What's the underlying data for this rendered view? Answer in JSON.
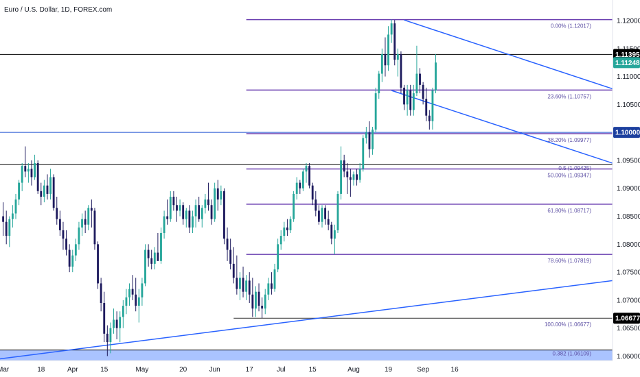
{
  "chart_data": {
    "type": "candlestick",
    "title": "Euro / U.S. Dollar, 1D, FOREX.com",
    "ylim": [
      1.0592,
      1.1227
    ],
    "xlim": [
      0,
      194
    ],
    "y_ticks": [
      "1.06000",
      "1.06500",
      "1.07000",
      "1.07500",
      "1.08000",
      "1.08500",
      "1.09000",
      "1.09500",
      "1.10000",
      "1.10500",
      "1.11000",
      "1.11500",
      "1.12000"
    ],
    "x_ticks": [
      {
        "label": "Mar",
        "x": 1
      },
      {
        "label": "18",
        "x": 13
      },
      {
        "label": "Apr",
        "x": 23
      },
      {
        "label": "15",
        "x": 33
      },
      {
        "label": "May",
        "x": 45
      },
      {
        "label": "20",
        "x": 58
      },
      {
        "label": "Jun",
        "x": 68
      },
      {
        "label": "17",
        "x": 79
      },
      {
        "label": "Jul",
        "x": 89
      },
      {
        "label": "15",
        "x": 99
      },
      {
        "label": "Aug",
        "x": 112
      },
      {
        "label": "19",
        "x": 123
      },
      {
        "label": "Sep",
        "x": 134
      },
      {
        "label": "16",
        "x": 144
      }
    ],
    "colors": {
      "up": "#26a69a",
      "down": "#1e1b5e",
      "fib": "#6a3fb0",
      "trend": "#2962ff",
      "support_zone": "#9bb8ff",
      "black_line": "#000000",
      "last_price": "#26a69a"
    },
    "horizontal_levels": [
      {
        "y": 1.11395,
        "color": "#000000",
        "tag": "1.11395",
        "tag_bg": "#000000"
      },
      {
        "y": 1.1,
        "color": "#1f4fd1",
        "tag": "1.10000",
        "tag_bg": "#1c3f9e"
      },
      {
        "y": 1.0943,
        "color": "#000000",
        "tag": null
      },
      {
        "y": 1.06109,
        "color": "#000000",
        "tag": null
      }
    ],
    "last_price": {
      "value": 1.11248,
      "tag": "1.11248"
    },
    "fib_low_tag": {
      "value": 1.06677,
      "tag": "1.06677"
    },
    "fib_levels": [
      {
        "label": "0.00% (1.12017)",
        "y": 1.12017
      },
      {
        "label": "23.60% (1.10757)",
        "y": 1.10757
      },
      {
        "label": "38.20% (1.09977)",
        "y": 1.09977
      },
      {
        "label": "50.00% (1.09347)",
        "y": 1.09347
      },
      {
        "label": "61.80% (1.08717)",
        "y": 1.08717
      },
      {
        "label": "78.60% (1.07819)",
        "y": 1.07819
      },
      {
        "label": "100.00% (1.06677)",
        "y": 1.06677
      }
    ],
    "fib_start_x": 78,
    "fib_100_start_x": 74,
    "extra_labels": [
      {
        "label": "0.5 (1.09425)",
        "y": 1.09425
      },
      {
        "label": "0.382 (1.06109)",
        "y": 1.06109
      }
    ],
    "support_zone": {
      "y_low": 1.0592,
      "y_high": 1.06109
    },
    "trendlines": [
      {
        "x1": 0,
        "y1": 1.0595,
        "x2": 194,
        "y2": 1.0735
      },
      {
        "x1": 128,
        "y1": 1.1201,
        "x2": 194,
        "y2": 1.1078
      },
      {
        "x1": 124,
        "y1": 1.1075,
        "x2": 194,
        "y2": 1.0945
      }
    ],
    "candles": [
      {
        "x": 1,
        "o": 1.085,
        "h": 1.0875,
        "l": 1.0815,
        "c": 1.084
      },
      {
        "x": 2,
        "o": 1.084,
        "h": 1.086,
        "l": 1.08,
        "c": 1.0815
      },
      {
        "x": 3,
        "o": 1.0815,
        "h": 1.085,
        "l": 1.0795,
        "c": 1.0845
      },
      {
        "x": 4,
        "o": 1.0845,
        "h": 1.087,
        "l": 1.083,
        "c": 1.0855
      },
      {
        "x": 5,
        "o": 1.0855,
        "h": 1.089,
        "l": 1.0845,
        "c": 1.088
      },
      {
        "x": 6,
        "o": 1.088,
        "h": 1.0915,
        "l": 1.087,
        "c": 1.091
      },
      {
        "x": 7,
        "o": 1.091,
        "h": 1.0945,
        "l": 1.0895,
        "c": 1.094
      },
      {
        "x": 8,
        "o": 1.094,
        "h": 1.0975,
        "l": 1.092,
        "c": 1.093
      },
      {
        "x": 9,
        "o": 1.093,
        "h": 1.0945,
        "l": 1.091,
        "c": 1.0935
      },
      {
        "x": 10,
        "o": 1.0935,
        "h": 1.095,
        "l": 1.0905,
        "c": 1.092
      },
      {
        "x": 11,
        "o": 1.092,
        "h": 1.096,
        "l": 1.0915,
        "c": 1.0945
      },
      {
        "x": 12,
        "o": 1.0945,
        "h": 1.095,
        "l": 1.089,
        "c": 1.0895
      },
      {
        "x": 13,
        "o": 1.0895,
        "h": 1.091,
        "l": 1.087,
        "c": 1.0885
      },
      {
        "x": 14,
        "o": 1.0885,
        "h": 1.0915,
        "l": 1.0875,
        "c": 1.0905
      },
      {
        "x": 15,
        "o": 1.0905,
        "h": 1.0925,
        "l": 1.088,
        "c": 1.089
      },
      {
        "x": 16,
        "o": 1.089,
        "h": 1.0935,
        "l": 1.088,
        "c": 1.092
      },
      {
        "x": 17,
        "o": 1.092,
        "h": 1.0925,
        "l": 1.086,
        "c": 1.0865
      },
      {
        "x": 18,
        "o": 1.0865,
        "h": 1.0885,
        "l": 1.0835,
        "c": 1.0845
      },
      {
        "x": 19,
        "o": 1.0845,
        "h": 1.086,
        "l": 1.0815,
        "c": 1.0825
      },
      {
        "x": 20,
        "o": 1.0825,
        "h": 1.084,
        "l": 1.079,
        "c": 1.081
      },
      {
        "x": 21,
        "o": 1.081,
        "h": 1.0825,
        "l": 1.078,
        "c": 1.079
      },
      {
        "x": 22,
        "o": 1.079,
        "h": 1.08,
        "l": 1.075,
        "c": 1.076
      },
      {
        "x": 23,
        "o": 1.076,
        "h": 1.079,
        "l": 1.075,
        "c": 1.078
      },
      {
        "x": 24,
        "o": 1.078,
        "h": 1.081,
        "l": 1.077,
        "c": 1.08
      },
      {
        "x": 25,
        "o": 1.08,
        "h": 1.084,
        "l": 1.079,
        "c": 1.083
      },
      {
        "x": 26,
        "o": 1.083,
        "h": 1.0855,
        "l": 1.0815,
        "c": 1.0845
      },
      {
        "x": 27,
        "o": 1.0845,
        "h": 1.086,
        "l": 1.082,
        "c": 1.0835
      },
      {
        "x": 28,
        "o": 1.0835,
        "h": 1.087,
        "l": 1.0825,
        "c": 1.0865
      },
      {
        "x": 29,
        "o": 1.0865,
        "h": 1.088,
        "l": 1.083,
        "c": 1.086
      },
      {
        "x": 30,
        "o": 1.086,
        "h": 1.0865,
        "l": 1.079,
        "c": 1.08
      },
      {
        "x": 31,
        "o": 1.08,
        "h": 1.0805,
        "l": 1.072,
        "c": 1.073
      },
      {
        "x": 32,
        "o": 1.073,
        "h": 1.074,
        "l": 1.068,
        "c": 1.0695
      },
      {
        "x": 33,
        "o": 1.0695,
        "h": 1.0715,
        "l": 1.0625,
        "c": 1.064
      },
      {
        "x": 34,
        "o": 1.064,
        "h": 1.0655,
        "l": 1.06,
        "c": 1.0625
      },
      {
        "x": 35,
        "o": 1.0625,
        "h": 1.066,
        "l": 1.0605,
        "c": 1.065
      },
      {
        "x": 36,
        "o": 1.065,
        "h": 1.0685,
        "l": 1.064,
        "c": 1.0665
      },
      {
        "x": 37,
        "o": 1.0665,
        "h": 1.068,
        "l": 1.063,
        "c": 1.065
      },
      {
        "x": 38,
        "o": 1.065,
        "h": 1.068,
        "l": 1.0625,
        "c": 1.067
      },
      {
        "x": 39,
        "o": 1.067,
        "h": 1.07,
        "l": 1.065,
        "c": 1.069
      },
      {
        "x": 40,
        "o": 1.069,
        "h": 1.072,
        "l": 1.0675,
        "c": 1.0705
      },
      {
        "x": 41,
        "o": 1.0705,
        "h": 1.073,
        "l": 1.069,
        "c": 1.072
      },
      {
        "x": 42,
        "o": 1.072,
        "h": 1.0745,
        "l": 1.07,
        "c": 1.071
      },
      {
        "x": 43,
        "o": 1.071,
        "h": 1.074,
        "l": 1.068,
        "c": 1.069
      },
      {
        "x": 44,
        "o": 1.069,
        "h": 1.072,
        "l": 1.066,
        "c": 1.0705
      },
      {
        "x": 45,
        "o": 1.0705,
        "h": 1.074,
        "l": 1.069,
        "c": 1.073
      },
      {
        "x": 46,
        "o": 1.073,
        "h": 1.08,
        "l": 1.0725,
        "c": 1.079
      },
      {
        "x": 47,
        "o": 1.079,
        "h": 1.08,
        "l": 1.076,
        "c": 1.0775
      },
      {
        "x": 48,
        "o": 1.0775,
        "h": 1.079,
        "l": 1.0755,
        "c": 1.0765
      },
      {
        "x": 49,
        "o": 1.0765,
        "h": 1.0795,
        "l": 1.0755,
        "c": 1.0785
      },
      {
        "x": 50,
        "o": 1.0785,
        "h": 1.082,
        "l": 1.077,
        "c": 1.077
      },
      {
        "x": 51,
        "o": 1.077,
        "h": 1.083,
        "l": 1.0765,
        "c": 1.082
      },
      {
        "x": 52,
        "o": 1.082,
        "h": 1.086,
        "l": 1.081,
        "c": 1.085
      },
      {
        "x": 53,
        "o": 1.085,
        "h": 1.088,
        "l": 1.0835,
        "c": 1.0845
      },
      {
        "x": 54,
        "o": 1.0845,
        "h": 1.0895,
        "l": 1.084,
        "c": 1.0885
      },
      {
        "x": 55,
        "o": 1.0885,
        "h": 1.0895,
        "l": 1.086,
        "c": 1.087
      },
      {
        "x": 56,
        "o": 1.087,
        "h": 1.0885,
        "l": 1.084,
        "c": 1.086
      },
      {
        "x": 57,
        "o": 1.086,
        "h": 1.088,
        "l": 1.085,
        "c": 1.087
      },
      {
        "x": 58,
        "o": 1.087,
        "h": 1.0875,
        "l": 1.0835,
        "c": 1.0845
      },
      {
        "x": 59,
        "o": 1.0845,
        "h": 1.0865,
        "l": 1.083,
        "c": 1.086
      },
      {
        "x": 60,
        "o": 1.086,
        "h": 1.087,
        "l": 1.082,
        "c": 1.083
      },
      {
        "x": 61,
        "o": 1.083,
        "h": 1.086,
        "l": 1.082,
        "c": 1.085
      },
      {
        "x": 62,
        "o": 1.085,
        "h": 1.088,
        "l": 1.083,
        "c": 1.087
      },
      {
        "x": 63,
        "o": 1.087,
        "h": 1.0885,
        "l": 1.084,
        "c": 1.0845
      },
      {
        "x": 64,
        "o": 1.0845,
        "h": 1.087,
        "l": 1.083,
        "c": 1.0865
      },
      {
        "x": 65,
        "o": 1.0865,
        "h": 1.089,
        "l": 1.0855,
        "c": 1.088
      },
      {
        "x": 66,
        "o": 1.088,
        "h": 1.091,
        "l": 1.086,
        "c": 1.087
      },
      {
        "x": 67,
        "o": 1.087,
        "h": 1.088,
        "l": 1.0835,
        "c": 1.0845
      },
      {
        "x": 68,
        "o": 1.0845,
        "h": 1.091,
        "l": 1.084,
        "c": 1.09
      },
      {
        "x": 69,
        "o": 1.09,
        "h": 1.0915,
        "l": 1.086,
        "c": 1.088
      },
      {
        "x": 70,
        "o": 1.088,
        "h": 1.0905,
        "l": 1.087,
        "c": 1.0895
      },
      {
        "x": 71,
        "o": 1.0895,
        "h": 1.09,
        "l": 1.08,
        "c": 1.081
      },
      {
        "x": 72,
        "o": 1.081,
        "h": 1.083,
        "l": 1.077,
        "c": 1.079
      },
      {
        "x": 73,
        "o": 1.079,
        "h": 1.081,
        "l": 1.0755,
        "c": 1.0765
      },
      {
        "x": 74,
        "o": 1.0765,
        "h": 1.0795,
        "l": 1.073,
        "c": 1.074
      },
      {
        "x": 75,
        "o": 1.074,
        "h": 1.078,
        "l": 1.071,
        "c": 1.072
      },
      {
        "x": 76,
        "o": 1.072,
        "h": 1.075,
        "l": 1.07,
        "c": 1.074
      },
      {
        "x": 77,
        "o": 1.074,
        "h": 1.076,
        "l": 1.0705,
        "c": 1.0715
      },
      {
        "x": 78,
        "o": 1.0715,
        "h": 1.0745,
        "l": 1.07,
        "c": 1.0735
      },
      {
        "x": 79,
        "o": 1.0735,
        "h": 1.075,
        "l": 1.0695,
        "c": 1.071
      },
      {
        "x": 80,
        "o": 1.071,
        "h": 1.074,
        "l": 1.067,
        "c": 1.0685
      },
      {
        "x": 81,
        "o": 1.0685,
        "h": 1.0725,
        "l": 1.067,
        "c": 1.0715
      },
      {
        "x": 82,
        "o": 1.0715,
        "h": 1.073,
        "l": 1.068,
        "c": 1.069
      },
      {
        "x": 83,
        "o": 1.069,
        "h": 1.0705,
        "l": 1.0668,
        "c": 1.0685
      },
      {
        "x": 84,
        "o": 1.0685,
        "h": 1.072,
        "l": 1.0675,
        "c": 1.071
      },
      {
        "x": 85,
        "o": 1.071,
        "h": 1.074,
        "l": 1.07,
        "c": 1.073
      },
      {
        "x": 86,
        "o": 1.073,
        "h": 1.075,
        "l": 1.071,
        "c": 1.072
      },
      {
        "x": 87,
        "o": 1.072,
        "h": 1.0765,
        "l": 1.0715,
        "c": 1.0755
      },
      {
        "x": 88,
        "o": 1.0755,
        "h": 1.081,
        "l": 1.075,
        "c": 1.08
      },
      {
        "x": 89,
        "o": 1.08,
        "h": 1.0825,
        "l": 1.079,
        "c": 1.0815
      },
      {
        "x": 90,
        "o": 1.0815,
        "h": 1.084,
        "l": 1.0805,
        "c": 1.083
      },
      {
        "x": 91,
        "o": 1.083,
        "h": 1.0845,
        "l": 1.0815,
        "c": 1.0825
      },
      {
        "x": 92,
        "o": 1.0825,
        "h": 1.085,
        "l": 1.082,
        "c": 1.0845
      },
      {
        "x": 93,
        "o": 1.0845,
        "h": 1.0895,
        "l": 1.084,
        "c": 1.089
      },
      {
        "x": 94,
        "o": 1.089,
        "h": 1.092,
        "l": 1.088,
        "c": 1.091
      },
      {
        "x": 95,
        "o": 1.091,
        "h": 1.0915,
        "l": 1.089,
        "c": 1.09
      },
      {
        "x": 96,
        "o": 1.09,
        "h": 1.0935,
        "l": 1.0895,
        "c": 1.093
      },
      {
        "x": 97,
        "o": 1.093,
        "h": 1.0945,
        "l": 1.091,
        "c": 1.094
      },
      {
        "x": 98,
        "o": 1.094,
        "h": 1.0945,
        "l": 1.09,
        "c": 1.0905
      },
      {
        "x": 99,
        "o": 1.0905,
        "h": 1.091,
        "l": 1.087,
        "c": 1.088
      },
      {
        "x": 100,
        "o": 1.088,
        "h": 1.0895,
        "l": 1.085,
        "c": 1.086
      },
      {
        "x": 101,
        "o": 1.086,
        "h": 1.087,
        "l": 1.0835,
        "c": 1.084
      },
      {
        "x": 102,
        "o": 1.084,
        "h": 1.087,
        "l": 1.083,
        "c": 1.0865
      },
      {
        "x": 103,
        "o": 1.0865,
        "h": 1.087,
        "l": 1.0835,
        "c": 1.0845
      },
      {
        "x": 104,
        "o": 1.0845,
        "h": 1.086,
        "l": 1.0825,
        "c": 1.0835
      },
      {
        "x": 105,
        "o": 1.0835,
        "h": 1.084,
        "l": 1.08,
        "c": 1.081
      },
      {
        "x": 106,
        "o": 1.081,
        "h": 1.0835,
        "l": 1.0782,
        "c": 1.0825
      },
      {
        "x": 107,
        "o": 1.0825,
        "h": 1.0895,
        "l": 1.082,
        "c": 1.089
      },
      {
        "x": 108,
        "o": 1.089,
        "h": 1.0975,
        "l": 1.088,
        "c": 1.095
      },
      {
        "x": 109,
        "o": 1.095,
        "h": 1.096,
        "l": 1.092,
        "c": 1.093
      },
      {
        "x": 110,
        "o": 1.093,
        "h": 1.0945,
        "l": 1.089,
        "c": 1.092
      },
      {
        "x": 111,
        "o": 1.092,
        "h": 1.0935,
        "l": 1.0885,
        "c": 1.0915
      },
      {
        "x": 112,
        "o": 1.0915,
        "h": 1.093,
        "l": 1.0905,
        "c": 1.0925
      },
      {
        "x": 113,
        "o": 1.0925,
        "h": 1.0935,
        "l": 1.0905,
        "c": 1.0915
      },
      {
        "x": 114,
        "o": 1.0915,
        "h": 1.0945,
        "l": 1.091,
        "c": 1.0935
      },
      {
        "x": 115,
        "o": 1.0935,
        "h": 1.0995,
        "l": 1.093,
        "c": 1.099
      },
      {
        "x": 116,
        "o": 1.099,
        "h": 1.101,
        "l": 1.098,
        "c": 1.1
      },
      {
        "x": 117,
        "o": 1.1,
        "h": 1.102,
        "l": 1.0955,
        "c": 1.097
      },
      {
        "x": 118,
        "o": 1.097,
        "h": 1.101,
        "l": 1.096,
        "c": 1.1005
      },
      {
        "x": 119,
        "o": 1.1005,
        "h": 1.108,
        "l": 1.1,
        "c": 1.107
      },
      {
        "x": 120,
        "o": 1.107,
        "h": 1.111,
        "l": 1.106,
        "c": 1.1105
      },
      {
        "x": 121,
        "o": 1.1105,
        "h": 1.115,
        "l": 1.109,
        "c": 1.114
      },
      {
        "x": 122,
        "o": 1.114,
        "h": 1.117,
        "l": 1.11,
        "c": 1.112
      },
      {
        "x": 123,
        "o": 1.112,
        "h": 1.119,
        "l": 1.111,
        "c": 1.1175
      },
      {
        "x": 124,
        "o": 1.1175,
        "h": 1.1202,
        "l": 1.116,
        "c": 1.1195
      },
      {
        "x": 125,
        "o": 1.1195,
        "h": 1.1201,
        "l": 1.112,
        "c": 1.113
      },
      {
        "x": 126,
        "o": 1.113,
        "h": 1.115,
        "l": 1.11,
        "c": 1.114
      },
      {
        "x": 127,
        "o": 1.114,
        "h": 1.1145,
        "l": 1.107,
        "c": 1.108
      },
      {
        "x": 128,
        "o": 1.108,
        "h": 1.1085,
        "l": 1.104,
        "c": 1.105
      },
      {
        "x": 129,
        "o": 1.105,
        "h": 1.1085,
        "l": 1.103,
        "c": 1.1075
      },
      {
        "x": 130,
        "o": 1.1075,
        "h": 1.1085,
        "l": 1.103,
        "c": 1.104
      },
      {
        "x": 131,
        "o": 1.104,
        "h": 1.1085,
        "l": 1.103,
        "c": 1.107
      },
      {
        "x": 132,
        "o": 1.107,
        "h": 1.1155,
        "l": 1.1065,
        "c": 1.1105
      },
      {
        "x": 133,
        "o": 1.1105,
        "h": 1.1115,
        "l": 1.107,
        "c": 1.1085
      },
      {
        "x": 134,
        "o": 1.1085,
        "h": 1.109,
        "l": 1.105,
        "c": 1.106
      },
      {
        "x": 135,
        "o": 1.106,
        "h": 1.108,
        "l": 1.102,
        "c": 1.103
      },
      {
        "x": 136,
        "o": 1.103,
        "h": 1.104,
        "l": 1.1005,
        "c": 1.102
      },
      {
        "x": 137,
        "o": 1.102,
        "h": 1.108,
        "l": 1.1005,
        "c": 1.1075
      },
      {
        "x": 138,
        "o": 1.1075,
        "h": 1.114,
        "l": 1.107,
        "c": 1.1125
      }
    ]
  }
}
